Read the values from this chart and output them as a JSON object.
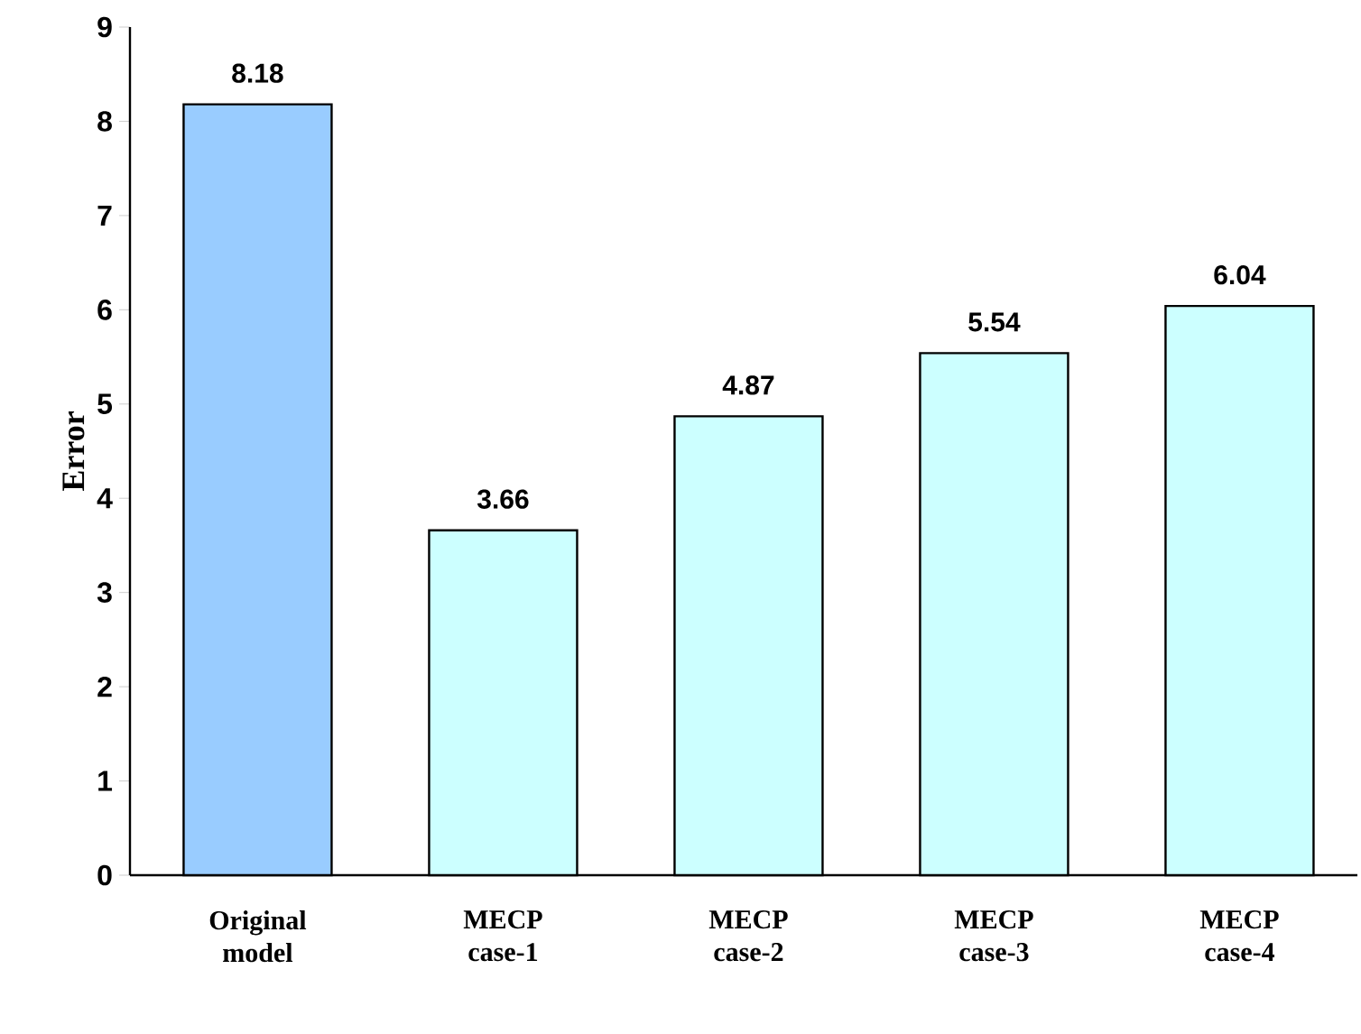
{
  "chart_data": {
    "type": "bar",
    "ylabel": "Error",
    "categories": [
      "Original model",
      "MECP case-1",
      "MECP case-2",
      "MECP case-3",
      "MECP case-4"
    ],
    "values": [
      8.18,
      3.66,
      4.87,
      5.54,
      6.04
    ],
    "colors": [
      "#99ccff",
      "#ccffff",
      "#ccffff",
      "#ccffff",
      "#ccffff"
    ],
    "ylim": [
      0,
      9
    ],
    "yticks": [
      0,
      1,
      2,
      3,
      4,
      5,
      6,
      7,
      8,
      9
    ],
    "data_labels": true
  }
}
